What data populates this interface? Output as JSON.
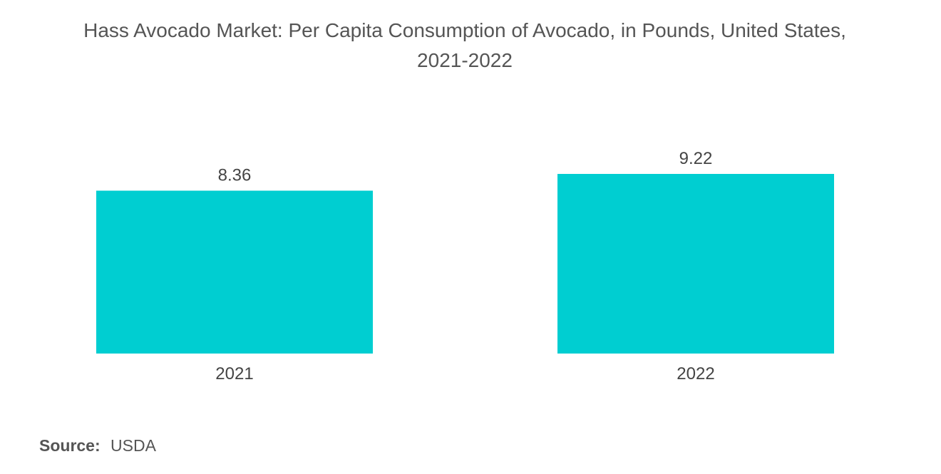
{
  "title": {
    "line1": "Hass Avocado Market: Per Capita Consumption of Avocado, in Pounds, United States,",
    "line2": "2021-2022"
  },
  "source": {
    "label": "Source:",
    "value": "USDA"
  },
  "colors": {
    "bar": "#00ced1",
    "text": "#555555"
  },
  "chart_data": {
    "type": "bar",
    "title": "Hass Avocado Market: Per Capita Consumption of Avocado, in Pounds, United States, 2021-2022",
    "categories": [
      "2021",
      "2022"
    ],
    "values": [
      8.36,
      9.22
    ],
    "value_labels": [
      "8.36",
      "9.22"
    ],
    "xlabel": "",
    "ylabel": "",
    "ylim": [
      0,
      9.22
    ],
    "grid": false,
    "legend": "none"
  }
}
